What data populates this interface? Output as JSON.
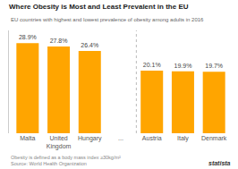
{
  "chart_data": {
    "type": "bar",
    "title": "Where Obesity is Most and Least Prevalent in the EU",
    "subtitle": "EU countries with highest and lowest prevalence of obesity among adults in 2016",
    "categories": [
      "Malta",
      "United\nKingdom",
      "Hungary",
      "...",
      "Austria",
      "Italy",
      "Denmark"
    ],
    "values": [
      28.9,
      27.8,
      26.4,
      0,
      20.1,
      19.9,
      19.7
    ],
    "value_labels": [
      "28.9%",
      "27.8%",
      "26.4%",
      null,
      "20.1%",
      "19.9%",
      "19.7%"
    ],
    "data_labels": true,
    "color": "#FFA500",
    "ylim": [
      0,
      33
    ],
    "grid": false,
    "tick_labels": "x",
    "annotations": [
      "Obesity is defined as a body mass index ≥30kg/m²\nSource: World Health Organization",
      "statista"
    ]
  }
}
